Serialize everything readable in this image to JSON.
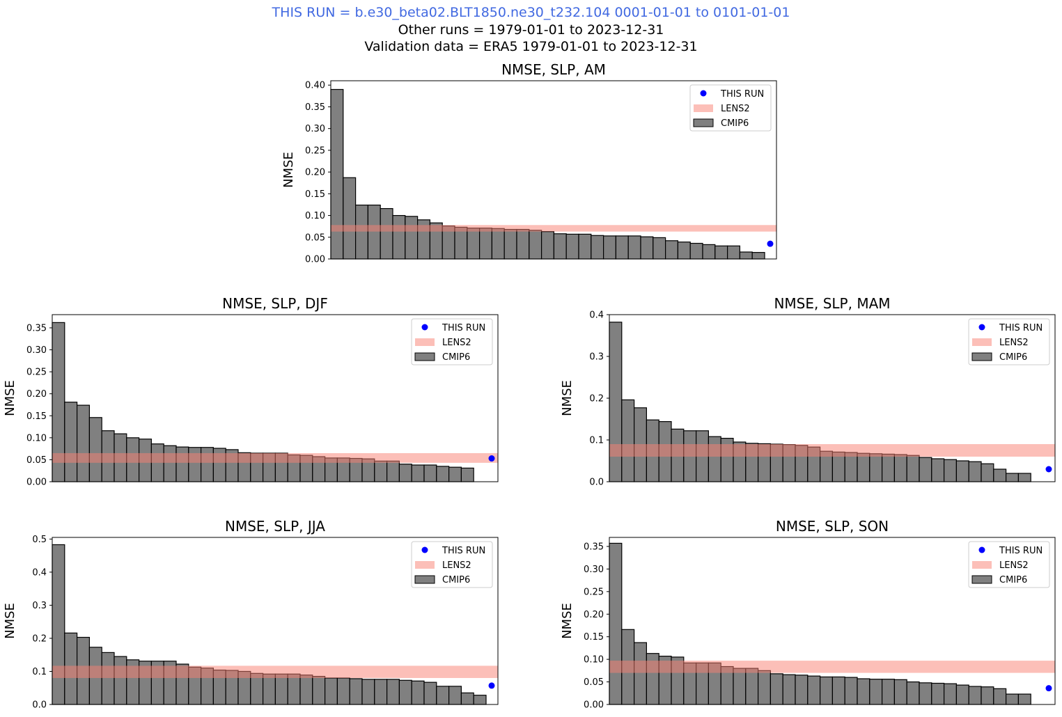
{
  "header": {
    "line1": "THIS RUN = b.e30_beta02.BLT1850.ne30_t232.104 0001-01-01 to 0101-01-01",
    "line2": "Other runs = 1979-01-01 to 2023-12-31",
    "line3": "Validation data = ERA5 1979-01-01 to 2023-12-31",
    "line1_color": "#4169e1"
  },
  "colors": {
    "bar_fill": "#808080",
    "bar_edge": "#000000",
    "lens2_band": "#fa8072",
    "this_run": "#0000ff"
  },
  "legend": [
    "THIS RUN",
    "LENS2",
    "CMIP6"
  ],
  "chart_data": [
    {
      "type": "bar",
      "title": "NMSE, SLP, AM",
      "ylabel": "NMSE",
      "ylim": [
        0,
        0.41
      ],
      "yticks": [
        "0.00",
        "0.05",
        "0.10",
        "0.15",
        "0.20",
        "0.25",
        "0.30",
        "0.35",
        "0.40"
      ],
      "legend_position": "top-right",
      "cmip6": [
        0.39,
        0.187,
        0.124,
        0.124,
        0.116,
        0.1,
        0.098,
        0.09,
        0.083,
        0.076,
        0.073,
        0.071,
        0.071,
        0.07,
        0.068,
        0.068,
        0.066,
        0.063,
        0.058,
        0.057,
        0.057,
        0.054,
        0.053,
        0.053,
        0.053,
        0.051,
        0.049,
        0.042,
        0.039,
        0.036,
        0.033,
        0.03,
        0.03,
        0.016,
        0.015
      ],
      "lens2_range": [
        0.063,
        0.078
      ],
      "this_run": 0.035
    },
    {
      "type": "bar",
      "title": "NMSE, SLP, DJF",
      "ylabel": "NMSE",
      "ylim": [
        0,
        0.38
      ],
      "yticks": [
        "0.00",
        "0.05",
        "0.10",
        "0.15",
        "0.20",
        "0.25",
        "0.30",
        "0.35"
      ],
      "legend_position": "top-right",
      "cmip6": [
        0.362,
        0.181,
        0.174,
        0.146,
        0.116,
        0.109,
        0.1,
        0.097,
        0.086,
        0.082,
        0.079,
        0.078,
        0.078,
        0.076,
        0.073,
        0.066,
        0.065,
        0.065,
        0.065,
        0.061,
        0.06,
        0.057,
        0.054,
        0.054,
        0.053,
        0.052,
        0.047,
        0.047,
        0.04,
        0.038,
        0.038,
        0.035,
        0.033,
        0.031
      ],
      "lens2_range": [
        0.043,
        0.065
      ],
      "this_run": 0.053
    },
    {
      "type": "bar",
      "title": "NMSE, SLP, MAM",
      "ylabel": "NMSE",
      "ylim": [
        0,
        0.4
      ],
      "yticks": [
        "0.0",
        "0.1",
        "0.2",
        "0.3",
        "0.4"
      ],
      "legend_position": "top-right",
      "cmip6": [
        0.382,
        0.196,
        0.177,
        0.148,
        0.144,
        0.126,
        0.122,
        0.122,
        0.108,
        0.104,
        0.095,
        0.092,
        0.091,
        0.09,
        0.089,
        0.087,
        0.083,
        0.073,
        0.071,
        0.07,
        0.068,
        0.067,
        0.066,
        0.065,
        0.063,
        0.058,
        0.055,
        0.053,
        0.05,
        0.048,
        0.043,
        0.03,
        0.02,
        0.02
      ],
      "lens2_range": [
        0.06,
        0.09
      ],
      "this_run": 0.03
    },
    {
      "type": "bar",
      "title": "NMSE, SLP, JJA",
      "ylabel": "NMSE",
      "ylim": [
        0,
        0.505
      ],
      "yticks": [
        "0.0",
        "0.1",
        "0.2",
        "0.3",
        "0.4",
        "0.5"
      ],
      "legend_position": "top-right",
      "cmip6": [
        0.483,
        0.216,
        0.203,
        0.173,
        0.157,
        0.145,
        0.135,
        0.131,
        0.131,
        0.131,
        0.122,
        0.113,
        0.11,
        0.104,
        0.103,
        0.1,
        0.094,
        0.092,
        0.092,
        0.092,
        0.089,
        0.085,
        0.08,
        0.08,
        0.078,
        0.076,
        0.076,
        0.076,
        0.073,
        0.071,
        0.067,
        0.055,
        0.055,
        0.035,
        0.028
      ],
      "lens2_range": [
        0.08,
        0.117
      ],
      "this_run": 0.057
    },
    {
      "type": "bar",
      "title": "NMSE, SLP, SON",
      "ylabel": "NMSE",
      "ylim": [
        0,
        0.37
      ],
      "yticks": [
        "0.00",
        "0.05",
        "0.10",
        "0.15",
        "0.20",
        "0.25",
        "0.30",
        "0.35"
      ],
      "legend_position": "top-right",
      "cmip6": [
        0.357,
        0.166,
        0.137,
        0.113,
        0.107,
        0.105,
        0.092,
        0.092,
        0.092,
        0.084,
        0.08,
        0.08,
        0.075,
        0.068,
        0.066,
        0.065,
        0.063,
        0.061,
        0.061,
        0.06,
        0.057,
        0.056,
        0.056,
        0.055,
        0.05,
        0.048,
        0.047,
        0.046,
        0.043,
        0.04,
        0.039,
        0.035,
        0.023,
        0.023
      ],
      "lens2_range": [
        0.07,
        0.097
      ],
      "this_run": 0.036
    }
  ]
}
